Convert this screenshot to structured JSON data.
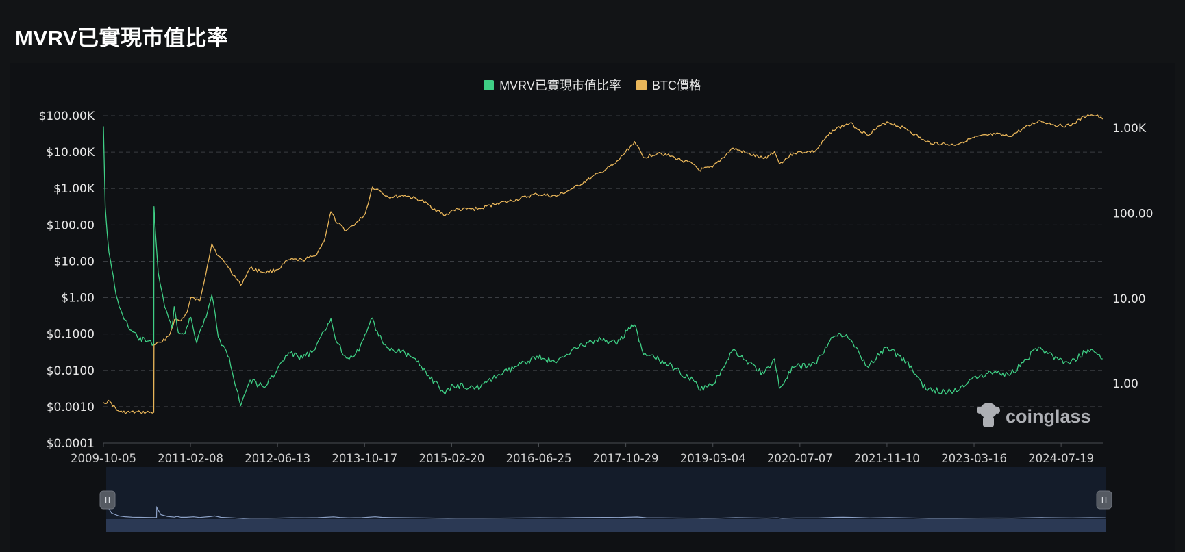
{
  "page": {
    "title": "MVRV已實現市值比率"
  },
  "legend": {
    "items": [
      {
        "label": "MVRV已實現市值比率",
        "color": "#3fcf85"
      },
      {
        "label": "BTC價格",
        "color": "#e9b65a"
      }
    ]
  },
  "watermark": {
    "text": "coinglass",
    "icon": "coinglass-mascot-icon"
  },
  "chart_data": {
    "type": "line",
    "title": "MVRV已實現市值比率",
    "x_tick_labels": [
      "2009-10-05",
      "2011-02-08",
      "2012-06-13",
      "2013-10-17",
      "2015-02-20",
      "2016-06-25",
      "2017-10-29",
      "2019-03-04",
      "2020-07-07",
      "2021-11-10",
      "2023-03-16",
      "2024-07-19"
    ],
    "x_range": [
      "2009-10-05",
      "2025-03-15"
    ],
    "left_axis": {
      "scale": "log",
      "tick_labels": [
        "$100.00K",
        "$10.00K",
        "$1.00K",
        "$100.00",
        "$10.00",
        "$1.00",
        "$0.1000",
        "$0.0100",
        "$0.0010",
        "$0.0001"
      ],
      "range": [
        0.0001,
        100000
      ]
    },
    "right_axis": {
      "scale": "log",
      "tick_labels": [
        "1.00K",
        "100.00",
        "10.00",
        "1.00"
      ],
      "range": [
        0.2,
        1400
      ]
    },
    "grid": "horizontal-dashed",
    "legend_position": "top-center",
    "series": [
      {
        "name": "BTC價格",
        "axis": "left",
        "color": "#e9b65a",
        "points": [
          [
            "2009-10-05",
            0.0013
          ],
          [
            "2009-11-10",
            0.0014
          ],
          [
            "2009-12-20",
            0.0008
          ],
          [
            "2010-01-20",
            0.0007
          ],
          [
            "2010-05-01",
            0.0007
          ],
          [
            "2010-07-16",
            0.0007
          ],
          [
            "2010-07-17",
            0.05
          ],
          [
            "2010-09-01",
            0.06
          ],
          [
            "2010-10-15",
            0.1
          ],
          [
            "2010-11-10",
            0.25
          ],
          [
            "2010-12-15",
            0.23
          ],
          [
            "2011-01-20",
            0.4
          ],
          [
            "2011-02-10",
            1.0
          ],
          [
            "2011-04-01",
            0.8
          ],
          [
            "2011-05-15",
            8.0
          ],
          [
            "2011-06-08",
            30.0
          ],
          [
            "2011-07-15",
            14.0
          ],
          [
            "2011-09-01",
            8.0
          ],
          [
            "2011-11-18",
            2.2
          ],
          [
            "2012-01-10",
            6.5
          ],
          [
            "2012-04-01",
            4.9
          ],
          [
            "2012-06-13",
            5.9
          ],
          [
            "2012-08-15",
            11.0
          ],
          [
            "2012-11-01",
            10.8
          ],
          [
            "2013-01-10",
            14.0
          ],
          [
            "2013-03-01",
            34.0
          ],
          [
            "2013-04-10",
            230.0
          ],
          [
            "2013-05-15",
            110.0
          ],
          [
            "2013-07-05",
            70.0
          ],
          [
            "2013-09-15",
            130.0
          ],
          [
            "2013-10-20",
            200.0
          ],
          [
            "2013-11-30",
            1100.0
          ],
          [
            "2014-01-05",
            900.0
          ],
          [
            "2014-03-01",
            580.0
          ],
          [
            "2014-06-01",
            650.0
          ],
          [
            "2014-09-01",
            470.0
          ],
          [
            "2015-01-14",
            180.0
          ],
          [
            "2015-03-01",
            260.0
          ],
          [
            "2015-08-01",
            280.0
          ],
          [
            "2015-11-05",
            400.0
          ],
          [
            "2016-01-01",
            430.0
          ],
          [
            "2016-06-15",
            700.0
          ],
          [
            "2016-10-01",
            610.0
          ],
          [
            "2017-01-05",
            1000.0
          ],
          [
            "2017-06-10",
            2800.0
          ],
          [
            "2017-09-01",
            4800.0
          ],
          [
            "2017-12-17",
            19500.0
          ],
          [
            "2018-02-06",
            7000.0
          ],
          [
            "2018-05-05",
            9800.0
          ],
          [
            "2018-08-01",
            7000.0
          ],
          [
            "2018-11-20",
            4500.0
          ],
          [
            "2018-12-15",
            3200.0
          ],
          [
            "2019-03-01",
            3800.0
          ],
          [
            "2019-06-26",
            12900.0
          ],
          [
            "2019-09-01",
            9600.0
          ],
          [
            "2019-12-17",
            6600.0
          ],
          [
            "2020-02-14",
            10300.0
          ],
          [
            "2020-03-13",
            4800.0
          ],
          [
            "2020-06-01",
            9500.0
          ],
          [
            "2020-10-01",
            10600.0
          ],
          [
            "2021-01-08",
            40000.0
          ],
          [
            "2021-04-14",
            63000.0
          ],
          [
            "2021-07-20",
            29800.0
          ],
          [
            "2021-11-10",
            68000.0
          ],
          [
            "2022-03-01",
            43000.0
          ],
          [
            "2022-06-18",
            19000.0
          ],
          [
            "2022-11-21",
            15700.0
          ],
          [
            "2023-03-16",
            25000.0
          ],
          [
            "2023-07-14",
            31000.0
          ],
          [
            "2023-10-01",
            27000.0
          ],
          [
            "2024-03-14",
            73000.0
          ],
          [
            "2024-07-05",
            54000.0
          ],
          [
            "2024-09-06",
            53000.0
          ],
          [
            "2024-12-17",
            106000.0
          ],
          [
            "2025-02-01",
            100000.0
          ],
          [
            "2025-03-10",
            80000.0
          ]
        ]
      },
      {
        "name": "MVRV已實現市值比率",
        "axis": "right",
        "color": "#3fcf85",
        "points": [
          [
            "2009-10-05",
            1050.0
          ],
          [
            "2009-10-15",
            120.0
          ],
          [
            "2009-11-05",
            35.0
          ],
          [
            "2009-12-15",
            11.0
          ],
          [
            "2010-01-20",
            6.5
          ],
          [
            "2010-03-01",
            4.3
          ],
          [
            "2010-04-15",
            3.5
          ],
          [
            "2010-06-01",
            3.1
          ],
          [
            "2010-07-16",
            2.9
          ],
          [
            "2010-07-17",
            120.0
          ],
          [
            "2010-08-10",
            20.0
          ],
          [
            "2010-09-15",
            8.0
          ],
          [
            "2010-10-25",
            4.5
          ],
          [
            "2010-11-08",
            8.0
          ],
          [
            "2010-12-01",
            4.0
          ],
          [
            "2011-01-01",
            3.8
          ],
          [
            "2011-02-10",
            6.0
          ],
          [
            "2011-03-15",
            3.0
          ],
          [
            "2011-05-15",
            7.0
          ],
          [
            "2011-06-08",
            11.0
          ],
          [
            "2011-07-15",
            3.5
          ],
          [
            "2011-09-15",
            2.0
          ],
          [
            "2011-11-18",
            0.55
          ],
          [
            "2012-01-10",
            1.1
          ],
          [
            "2012-04-01",
            0.9
          ],
          [
            "2012-06-13",
            1.5
          ],
          [
            "2012-08-15",
            2.3
          ],
          [
            "2012-11-01",
            2.0
          ],
          [
            "2013-01-10",
            2.5
          ],
          [
            "2013-04-10",
            5.8
          ],
          [
            "2013-05-15",
            3.0
          ],
          [
            "2013-07-05",
            2.0
          ],
          [
            "2013-09-15",
            2.4
          ],
          [
            "2013-11-30",
            5.9
          ],
          [
            "2014-01-05",
            3.6
          ],
          [
            "2014-03-01",
            2.6
          ],
          [
            "2014-06-01",
            2.3
          ],
          [
            "2014-09-01",
            1.6
          ],
          [
            "2015-01-14",
            0.75
          ],
          [
            "2015-03-01",
            0.95
          ],
          [
            "2015-08-01",
            0.9
          ],
          [
            "2015-11-05",
            1.25
          ],
          [
            "2016-01-01",
            1.4
          ],
          [
            "2016-06-15",
            2.1
          ],
          [
            "2016-10-01",
            1.75
          ],
          [
            "2017-01-05",
            2.6
          ],
          [
            "2017-06-10",
            3.3
          ],
          [
            "2017-09-01",
            3.0
          ],
          [
            "2017-12-17",
            4.9
          ],
          [
            "2018-02-06",
            2.2
          ],
          [
            "2018-05-05",
            1.9
          ],
          [
            "2018-08-01",
            1.5
          ],
          [
            "2018-11-20",
            1.05
          ],
          [
            "2018-12-15",
            0.85
          ],
          [
            "2019-03-01",
            0.95
          ],
          [
            "2019-06-26",
            2.5
          ],
          [
            "2019-09-01",
            1.9
          ],
          [
            "2019-12-17",
            1.3
          ],
          [
            "2020-02-14",
            1.95
          ],
          [
            "2020-03-13",
            0.88
          ],
          [
            "2020-06-01",
            1.55
          ],
          [
            "2020-10-01",
            1.7
          ],
          [
            "2021-01-08",
            3.5
          ],
          [
            "2021-02-20",
            3.9
          ],
          [
            "2021-04-14",
            3.3
          ],
          [
            "2021-07-20",
            1.6
          ],
          [
            "2021-11-10",
            2.7
          ],
          [
            "2022-03-01",
            1.8
          ],
          [
            "2022-06-18",
            0.85
          ],
          [
            "2022-11-21",
            0.8
          ],
          [
            "2023-03-16",
            1.2
          ],
          [
            "2023-07-14",
            1.4
          ],
          [
            "2023-10-01",
            1.25
          ],
          [
            "2024-03-14",
            2.7
          ],
          [
            "2024-07-05",
            1.9
          ],
          [
            "2024-09-06",
            1.7
          ],
          [
            "2024-12-17",
            2.5
          ],
          [
            "2025-02-01",
            2.3
          ],
          [
            "2025-03-10",
            1.95
          ]
        ]
      }
    ],
    "navigator": {
      "handle_icon": "drag-handle-icon"
    }
  }
}
